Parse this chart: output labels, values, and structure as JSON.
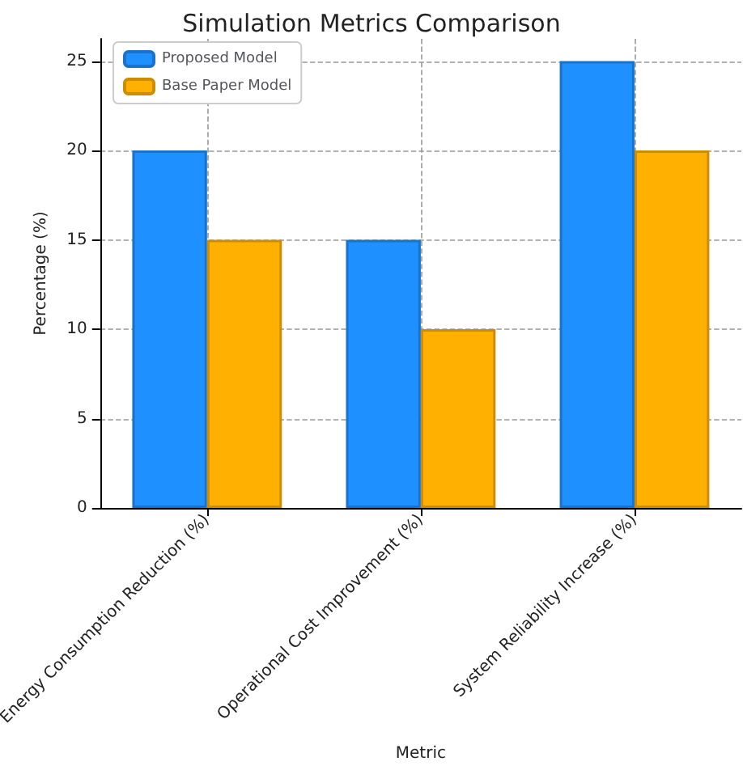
{
  "chart_data": {
    "type": "bar",
    "title": "Simulation Metrics Comparison",
    "xlabel": "Metric",
    "ylabel": "Percentage (%)",
    "categories": [
      "Energy Consumption Reduction (%)",
      "Operational Cost Improvement (%)",
      "System Reliability Increase (%)"
    ],
    "series": [
      {
        "name": "Proposed Model",
        "color": "#1e90ff",
        "values": [
          20,
          15,
          25
        ]
      },
      {
        "name": "Base Paper Model",
        "color": "#ffb000",
        "values": [
          15,
          10,
          20
        ]
      }
    ],
    "ylim": [
      0,
      26.25
    ],
    "yticks": [
      0,
      5,
      10,
      15,
      20,
      25
    ],
    "grid": true,
    "legend": "top left"
  }
}
